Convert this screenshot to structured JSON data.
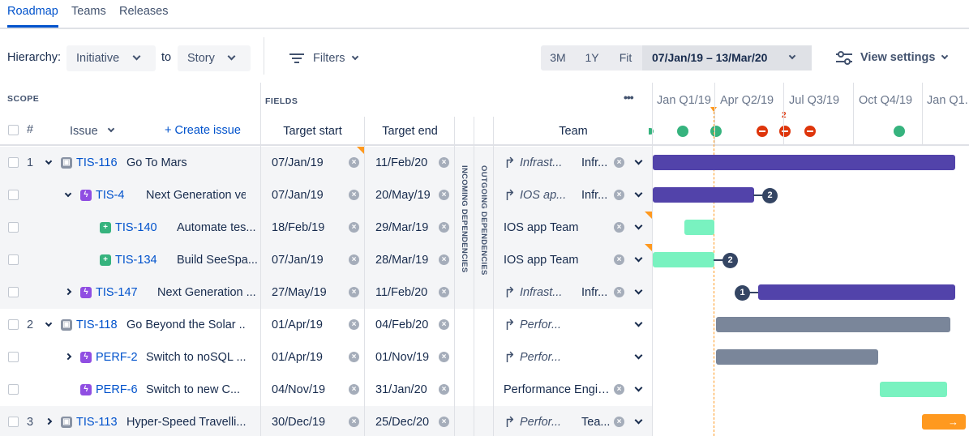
{
  "tabs": [
    {
      "label": "Roadmap",
      "active": true
    },
    {
      "label": "Teams",
      "active": false
    },
    {
      "label": "Releases",
      "active": false
    }
  ],
  "toolbar": {
    "hierarchy_label": "Hierarchy:",
    "hierarchy_from": "Initiative",
    "to_label": "to",
    "hierarchy_to": "Story",
    "filters_label": "Filters",
    "zoom_options": [
      "3M",
      "1Y",
      "Fit"
    ],
    "date_range": "07/Jan/19 – 13/Mar/20",
    "view_settings_label": "View settings"
  },
  "header": {
    "scope_label": "SCOPE",
    "fields_label": "FIELDS",
    "more_icon": "•••",
    "number_col": "#",
    "issue_col": "Issue",
    "create_issue": "+ Create issue",
    "target_start_col": "Target start",
    "target_end_col": "Target end",
    "incoming_deps": "INCOMING DEPENDENCIES",
    "outgoing_deps": "OUTGOING DEPENDENCIES",
    "team_col": "Team"
  },
  "timeline": {
    "quarters": [
      "Jan Q1/19",
      "Apr Q2/19",
      "Jul Q3/19",
      "Oct Q4/19",
      "Jan Q1..."
    ],
    "conflict_count": "2",
    "colors": {
      "initiative": "#5243AA",
      "epic": "#5243AA",
      "story": "#79F2C0",
      "grey": "#7A869A",
      "orange": "#FF991F",
      "green": "#36B37E",
      "red": "#DE350B"
    }
  },
  "rows": [
    {
      "num": "1",
      "key": "TIS-116",
      "summary": "Go To Mars",
      "type": "initiative",
      "start": "07/Jan/19",
      "end": "11/Feb/20",
      "team_italic": "Infrast...",
      "team_short": "Infr...",
      "shaded": true
    },
    {
      "num": "",
      "key": "TIS-4",
      "summary": "Next Generation ve...",
      "type": "epic",
      "start": "07/Jan/19",
      "end": "20/May/19",
      "team_italic": "IOS ap...",
      "team_short": "Infr...",
      "shaded": true,
      "bubble": "2"
    },
    {
      "num": "",
      "key": "TIS-140",
      "summary": "Automate tes...",
      "type": "story",
      "start": "18/Feb/19",
      "end": "29/Mar/19",
      "team": "IOS app Team",
      "shaded": true
    },
    {
      "num": "",
      "key": "TIS-134",
      "summary": "Build SeeSpa...",
      "type": "story",
      "start": "07/Jan/19",
      "end": "28/Mar/19",
      "team": "IOS app Team",
      "shaded": true,
      "bubble": "2"
    },
    {
      "num": "",
      "key": "TIS-147",
      "summary": "Next Generation ...",
      "type": "epic",
      "start": "27/May/19",
      "end": "11/Feb/20",
      "team_italic": "Infrast...",
      "team_short": "Infr...",
      "shaded": true,
      "bubble": "1"
    },
    {
      "num": "2",
      "key": "TIS-118",
      "summary": "Go Beyond the Solar ...",
      "type": "initiative",
      "start": "01/Apr/19",
      "end": "04/Feb/20",
      "team_italic": "Perfor...",
      "shaded": false
    },
    {
      "num": "",
      "key": "PERF-2",
      "summary": "Switch to noSQL ...",
      "type": "epic",
      "start": "01/Apr/19",
      "end": "01/Nov/19",
      "team_italic": "Perfor...",
      "shaded": false
    },
    {
      "num": "",
      "key": "PERF-6",
      "summary": "Switch to new C...",
      "type": "epic",
      "start": "04/Nov/19",
      "end": "31/Jan/20",
      "team": "Performance Engin...",
      "shaded": false
    },
    {
      "num": "3",
      "key": "TIS-113",
      "summary": "Hyper-Speed Travelli...",
      "type": "initiative",
      "start": "30/Dec/19",
      "end": "25/Dec/20",
      "team_italic": "Perfor...",
      "team_short": "Tea...",
      "shaded": true
    }
  ]
}
